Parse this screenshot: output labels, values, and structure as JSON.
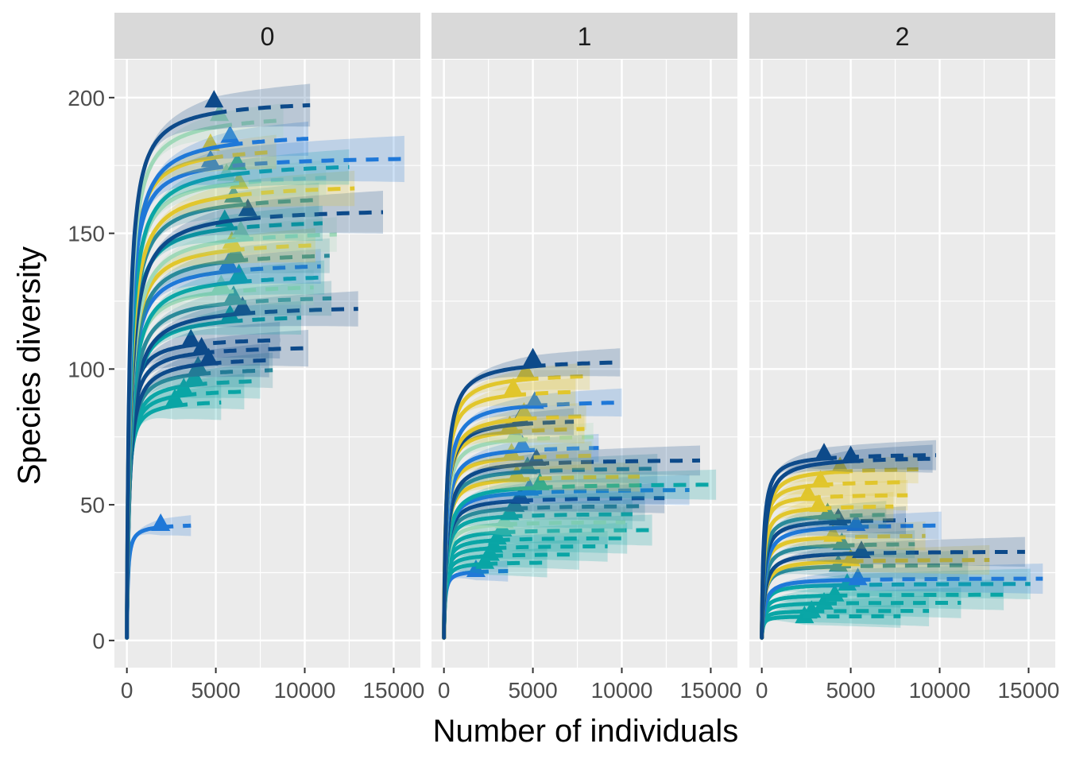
{
  "chart_data": {
    "type": "line",
    "subtype": "rarefaction-extrapolation-curves",
    "xlabel": "Number of individuals",
    "ylabel": "Species diversity",
    "x_ticks": [
      0,
      5000,
      10000,
      15000
    ],
    "x_tick_labels": [
      "0",
      "5000",
      "10000",
      "15000"
    ],
    "y_ticks": [
      0,
      50,
      100,
      150,
      200
    ],
    "y_tick_labels": [
      "0",
      "50",
      "100",
      "150",
      "200"
    ],
    "xlim": [
      -700,
      16500
    ],
    "ylim": [
      -10,
      214
    ],
    "grid": true,
    "legend": "none",
    "line_styles": {
      "rarefaction": "solid",
      "extrapolation": "dashed",
      "observed_marker": "triangle",
      "confidence_band": "shaded"
    },
    "palette": [
      "#0d4a8a",
      "#1f78d8",
      "#0aa6a6",
      "#e1c62c",
      "#9fd8b8",
      "#2a8a9a"
    ],
    "panel_background": "#ebebeb",
    "strip_background": "#d9d9d9",
    "gridline_color": "#ffffff",
    "facets": [
      {
        "label": "0",
        "series": [
          {
            "color": "#0d4a8a",
            "observed_x": 4900,
            "observed_y": 199,
            "asymptote": 200,
            "max_x": 10300,
            "ci": 6
          },
          {
            "color": "#9fd8b8",
            "observed_x": 5200,
            "observed_y": 194,
            "asymptote": 195,
            "max_x": 8800,
            "ci": 5
          },
          {
            "color": "#1f78d8",
            "observed_x": 5800,
            "observed_y": 186,
            "asymptote": 188,
            "max_x": 10200,
            "ci": 5
          },
          {
            "color": "#e1c62c",
            "observed_x": 4700,
            "observed_y": 183,
            "asymptote": 183,
            "max_x": 8400,
            "ci": 5
          },
          {
            "color": "#1f78d8",
            "observed_x": 4700,
            "observed_y": 177,
            "asymptote": 179,
            "max_x": 15600,
            "ci": 6
          },
          {
            "color": "#0aa6a6",
            "observed_x": 6200,
            "observed_y": 176,
            "asymptote": 177,
            "max_x": 12500,
            "ci": 5
          },
          {
            "color": "#9fd8b8",
            "observed_x": 5600,
            "observed_y": 172,
            "asymptote": 173,
            "max_x": 11200,
            "ci": 5
          },
          {
            "color": "#e1c62c",
            "observed_x": 6300,
            "observed_y": 169,
            "asymptote": 169,
            "max_x": 12800,
            "ci": 5
          },
          {
            "color": "#2a8a9a",
            "observed_x": 6000,
            "observed_y": 164,
            "asymptote": 165,
            "max_x": 10800,
            "ci": 5
          },
          {
            "color": "#0d4a8a",
            "observed_x": 6800,
            "observed_y": 159,
            "asymptote": 160,
            "max_x": 14400,
            "ci": 6
          },
          {
            "color": "#0aa6a6",
            "observed_x": 5500,
            "observed_y": 155,
            "asymptote": 156,
            "max_x": 11000,
            "ci": 5
          },
          {
            "color": "#9fd8b8",
            "observed_x": 6400,
            "observed_y": 151,
            "asymptote": 152,
            "max_x": 11800,
            "ci": 5
          },
          {
            "color": "#e1c62c",
            "observed_x": 5900,
            "observed_y": 147,
            "asymptote": 148,
            "max_x": 10600,
            "ci": 5
          },
          {
            "color": "#2a8a9a",
            "observed_x": 6100,
            "observed_y": 143,
            "asymptote": 144,
            "max_x": 11400,
            "ci": 5
          },
          {
            "color": "#1f78d8",
            "observed_x": 5700,
            "observed_y": 139,
            "asymptote": 140,
            "max_x": 10900,
            "ci": 5
          },
          {
            "color": "#0aa6a6",
            "observed_x": 6300,
            "observed_y": 135,
            "asymptote": 136,
            "max_x": 11100,
            "ci": 5
          },
          {
            "color": "#9fd8b8",
            "observed_x": 5300,
            "observed_y": 131,
            "asymptote": 132,
            "max_x": 10500,
            "ci": 5
          },
          {
            "color": "#2a8a9a",
            "observed_x": 6000,
            "observed_y": 127,
            "asymptote": 128,
            "max_x": 11500,
            "ci": 5
          },
          {
            "color": "#0d4a8a",
            "observed_x": 6500,
            "observed_y": 123,
            "asymptote": 124,
            "max_x": 13000,
            "ci": 5
          },
          {
            "color": "#0aa6a6",
            "observed_x": 5800,
            "observed_y": 120,
            "asymptote": 121,
            "max_x": 9800,
            "ci": 5
          },
          {
            "color": "#0d4a8a",
            "observed_x": 3600,
            "observed_y": 111,
            "asymptote": 112,
            "max_x": 8600,
            "ci": 5
          },
          {
            "color": "#0d4a8a",
            "observed_x": 4200,
            "observed_y": 108,
            "asymptote": 109,
            "max_x": 10200,
            "ci": 5
          },
          {
            "color": "#0d4a8a",
            "observed_x": 4600,
            "observed_y": 104,
            "asymptote": 105,
            "max_x": 8000,
            "ci": 5
          },
          {
            "color": "#2a8a9a",
            "observed_x": 4000,
            "observed_y": 101,
            "asymptote": 101,
            "max_x": 8200,
            "ci": 5
          },
          {
            "color": "#0aa6a6",
            "observed_x": 3800,
            "observed_y": 97,
            "asymptote": 97,
            "max_x": 7500,
            "ci": 5
          },
          {
            "color": "#0aa6a6",
            "observed_x": 3200,
            "observed_y": 93,
            "asymptote": 93,
            "max_x": 6600,
            "ci": 5
          },
          {
            "color": "#0aa6a6",
            "observed_x": 2700,
            "observed_y": 89,
            "asymptote": 89,
            "max_x": 5300,
            "ci": 5
          },
          {
            "color": "#1f78d8",
            "observed_x": 1900,
            "observed_y": 43,
            "asymptote": 43,
            "max_x": 3600,
            "ci": 3
          }
        ]
      },
      {
        "label": "1",
        "series": [
          {
            "color": "#0d4a8a",
            "observed_x": 5000,
            "observed_y": 104,
            "asymptote": 104,
            "max_x": 9900,
            "ci": 4
          },
          {
            "color": "#e1c62c",
            "observed_x": 4600,
            "observed_y": 99,
            "asymptote": 99,
            "max_x": 8200,
            "ci": 4
          },
          {
            "color": "#e1c62c",
            "observed_x": 3900,
            "observed_y": 93,
            "asymptote": 93,
            "max_x": 7400,
            "ci": 4
          },
          {
            "color": "#1f78d8",
            "observed_x": 5100,
            "observed_y": 88,
            "asymptote": 89,
            "max_x": 10000,
            "ci": 4
          },
          {
            "color": "#e1c62c",
            "observed_x": 4500,
            "observed_y": 84,
            "asymptote": 84,
            "max_x": 8000,
            "ci": 4
          },
          {
            "color": "#0d4a8a",
            "observed_x": 4300,
            "observed_y": 82,
            "asymptote": 82,
            "max_x": 7300,
            "ci": 4
          },
          {
            "color": "#e1c62c",
            "observed_x": 3700,
            "observed_y": 79,
            "asymptote": 79,
            "max_x": 7900,
            "ci": 4
          },
          {
            "color": "#9fd8b8",
            "observed_x": 4000,
            "observed_y": 76,
            "asymptote": 76,
            "max_x": 8400,
            "ci": 4
          },
          {
            "color": "#1f78d8",
            "observed_x": 4400,
            "observed_y": 72,
            "asymptote": 72,
            "max_x": 8700,
            "ci": 4
          },
          {
            "color": "#e1c62c",
            "observed_x": 3800,
            "observed_y": 69,
            "asymptote": 69,
            "max_x": 8300,
            "ci": 4
          },
          {
            "color": "#0d4a8a",
            "observed_x": 5200,
            "observed_y": 67,
            "asymptote": 67,
            "max_x": 14400,
            "ci": 4
          },
          {
            "color": "#2a8a9a",
            "observed_x": 4700,
            "observed_y": 64,
            "asymptote": 64,
            "max_x": 12000,
            "ci": 4
          },
          {
            "color": "#e1c62c",
            "observed_x": 4100,
            "observed_y": 61,
            "asymptote": 61,
            "max_x": 11000,
            "ci": 4
          },
          {
            "color": "#0aa6a6",
            "observed_x": 5400,
            "observed_y": 58,
            "asymptote": 58,
            "max_x": 15300,
            "ci": 4
          },
          {
            "color": "#1f78d8",
            "observed_x": 4800,
            "observed_y": 56,
            "asymptote": 56,
            "max_x": 13800,
            "ci": 4
          },
          {
            "color": "#0d4a8a",
            "observed_x": 4300,
            "observed_y": 53,
            "asymptote": 53,
            "max_x": 12400,
            "ci": 4
          },
          {
            "color": "#2a8a9a",
            "observed_x": 4000,
            "observed_y": 50,
            "asymptote": 50,
            "max_x": 11300,
            "ci": 4
          },
          {
            "color": "#0aa6a6",
            "observed_x": 3700,
            "observed_y": 47,
            "asymptote": 47,
            "max_x": 10600,
            "ci": 4
          },
          {
            "color": "#9fd8b8",
            "observed_x": 3400,
            "observed_y": 44,
            "asymptote": 44,
            "max_x": 10200,
            "ci": 4
          },
          {
            "color": "#0aa6a6",
            "observed_x": 3300,
            "observed_y": 41,
            "asymptote": 41,
            "max_x": 11700,
            "ci": 4
          },
          {
            "color": "#0aa6a6",
            "observed_x": 3000,
            "observed_y": 38,
            "asymptote": 38,
            "max_x": 10300,
            "ci": 4
          },
          {
            "color": "#0aa6a6",
            "observed_x": 2800,
            "observed_y": 35,
            "asymptote": 35,
            "max_x": 9200,
            "ci": 4
          },
          {
            "color": "#0aa6a6",
            "observed_x": 2600,
            "observed_y": 32,
            "asymptote": 32,
            "max_x": 7600,
            "ci": 4
          },
          {
            "color": "#0aa6a6",
            "observed_x": 2300,
            "observed_y": 29,
            "asymptote": 29,
            "max_x": 5800,
            "ci": 4
          },
          {
            "color": "#1f78d8",
            "observed_x": 1800,
            "observed_y": 26,
            "asymptote": 26,
            "max_x": 3600,
            "ci": 3
          }
        ]
      },
      {
        "label": "2",
        "series": [
          {
            "color": "#0d4a8a",
            "observed_x": 3500,
            "observed_y": 69,
            "asymptote": 69,
            "max_x": 9800,
            "ci": 4
          },
          {
            "color": "#0d4a8a",
            "observed_x": 5000,
            "observed_y": 68,
            "asymptote": 68,
            "max_x": 9600,
            "ci": 4
          },
          {
            "color": "#e1c62c",
            "observed_x": 4400,
            "observed_y": 64,
            "asymptote": 64,
            "max_x": 8800,
            "ci": 4
          },
          {
            "color": "#e1c62c",
            "observed_x": 3300,
            "observed_y": 59,
            "asymptote": 59,
            "max_x": 8100,
            "ci": 4
          },
          {
            "color": "#e1c62c",
            "observed_x": 2600,
            "observed_y": 54,
            "asymptote": 54,
            "max_x": 8200,
            "ci": 4
          },
          {
            "color": "#e1c62c",
            "observed_x": 3200,
            "observed_y": 50,
            "asymptote": 50,
            "max_x": 7400,
            "ci": 4
          },
          {
            "color": "#2a8a9a",
            "observed_x": 3700,
            "observed_y": 47,
            "asymptote": 47,
            "max_x": 7000,
            "ci": 4
          },
          {
            "color": "#0d4a8a",
            "observed_x": 4300,
            "observed_y": 45,
            "asymptote": 45,
            "max_x": 8100,
            "ci": 4
          },
          {
            "color": "#1f78d8",
            "observed_x": 5300,
            "observed_y": 43,
            "asymptote": 43,
            "max_x": 10100,
            "ci": 4
          },
          {
            "color": "#e1c62c",
            "observed_x": 4000,
            "observed_y": 39,
            "asymptote": 39,
            "max_x": 9200,
            "ci": 4
          },
          {
            "color": "#2a8a9a",
            "observed_x": 4500,
            "observed_y": 36,
            "asymptote": 36,
            "max_x": 8600,
            "ci": 4
          },
          {
            "color": "#0d4a8a",
            "observed_x": 5600,
            "observed_y": 33,
            "asymptote": 33,
            "max_x": 14800,
            "ci": 4
          },
          {
            "color": "#e1c62c",
            "observed_x": 5000,
            "observed_y": 30,
            "asymptote": 30,
            "max_x": 12800,
            "ci": 4
          },
          {
            "color": "#2a8a9a",
            "observed_x": 4300,
            "observed_y": 28,
            "asymptote": 28,
            "max_x": 11600,
            "ci": 4
          },
          {
            "color": "#1f78d8",
            "observed_x": 5400,
            "observed_y": 23,
            "asymptote": 23,
            "max_x": 15800,
            "ci": 4
          },
          {
            "color": "#0aa6a6",
            "observed_x": 4800,
            "observed_y": 21,
            "asymptote": 21,
            "max_x": 15100,
            "ci": 4
          },
          {
            "color": "#0aa6a6",
            "observed_x": 4100,
            "observed_y": 17,
            "asymptote": 17,
            "max_x": 13600,
            "ci": 4
          },
          {
            "color": "#0aa6a6",
            "observed_x": 3500,
            "observed_y": 14,
            "asymptote": 14,
            "max_x": 11200,
            "ci": 4
          },
          {
            "color": "#0aa6a6",
            "observed_x": 2800,
            "observed_y": 11,
            "asymptote": 11,
            "max_x": 9400,
            "ci": 4
          },
          {
            "color": "#0aa6a6",
            "observed_x": 2400,
            "observed_y": 9,
            "asymptote": 9,
            "max_x": 7800,
            "ci": 3
          }
        ]
      }
    ]
  }
}
